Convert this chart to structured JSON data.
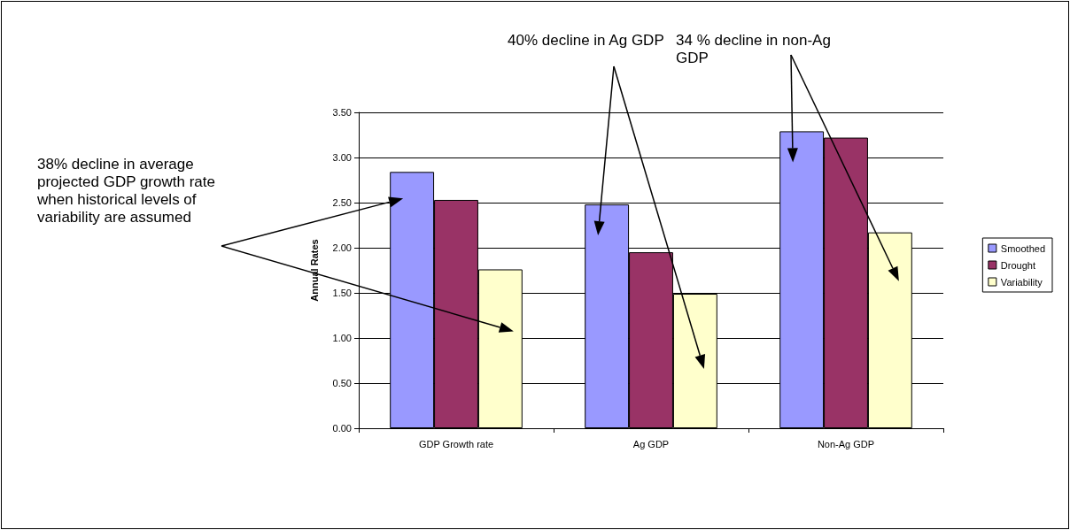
{
  "chart_data": {
    "type": "bar",
    "ylabel": "Annual Rates",
    "categories": [
      "GDP Growth rate",
      "Ag GDP",
      "Non-Ag GDP"
    ],
    "series": [
      {
        "name": "Smoothed",
        "color": "#9999ff",
        "values": [
          2.84,
          2.48,
          3.29
        ]
      },
      {
        "name": "Drought",
        "color": "#993366",
        "values": [
          2.53,
          1.95,
          3.22
        ]
      },
      {
        "name": "Variability",
        "color": "#ffffcc",
        "values": [
          1.76,
          1.49,
          2.17
        ]
      }
    ],
    "ylim": [
      0,
      3.5
    ],
    "yticks": [
      {
        "value": 0,
        "label": "0.00"
      },
      {
        "value": 0.5,
        "label": "0.50"
      },
      {
        "value": 1,
        "label": "1.00"
      },
      {
        "value": 1.5,
        "label": "1.50"
      },
      {
        "value": 2,
        "label": "2.00"
      },
      {
        "value": 2.5,
        "label": "2.50"
      },
      {
        "value": 3,
        "label": "3.00"
      },
      {
        "value": 3.5,
        "label": "3.50"
      }
    ],
    "grid": "y",
    "legend": "right",
    "annotations": [
      "38% decline in average projected GDP growth rate when historical levels of variability are assumed",
      "40% decline in Ag GDP",
      "34 % decline in non-Ag GDP"
    ]
  }
}
